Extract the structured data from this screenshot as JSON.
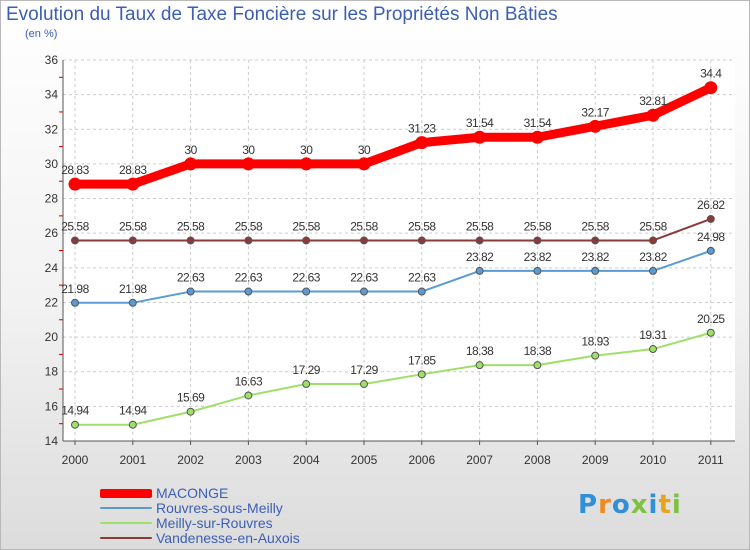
{
  "chart_data": {
    "type": "line",
    "title": "Evolution du Taux de Taxe Foncière sur les Propriétés Non Bâties",
    "unit_label": "(en %)",
    "categories": [
      "2000",
      "2001",
      "2002",
      "2003",
      "2004",
      "2005",
      "2006",
      "2007",
      "2008",
      "2009",
      "2010",
      "2011"
    ],
    "ylim": [
      14,
      36
    ],
    "yticks": [
      14,
      16,
      18,
      20,
      22,
      24,
      26,
      28,
      30,
      32,
      34,
      36
    ],
    "grid": true,
    "legend_position": "bottom-left",
    "series": [
      {
        "name": "MACONGE",
        "color": "#ff0000",
        "emphasis": true,
        "values": [
          28.83,
          28.83,
          30,
          30,
          30,
          30,
          31.23,
          31.54,
          31.54,
          32.17,
          32.81,
          34.4
        ],
        "labels": [
          "28.83",
          "28.83",
          "30",
          "30",
          "30",
          "30",
          "31.23",
          "31.54",
          "31.54",
          "32.17",
          "32.81",
          "34.4"
        ]
      },
      {
        "name": "Rouvres-sous-Meilly",
        "color": "#5b9bd5",
        "emphasis": false,
        "values": [
          21.98,
          21.98,
          22.63,
          22.63,
          22.63,
          22.63,
          22.63,
          23.82,
          23.82,
          23.82,
          23.82,
          24.98
        ],
        "labels": [
          "21.98",
          "21.98",
          "22.63",
          "22.63",
          "22.63",
          "22.63",
          "22.63",
          "23.82",
          "23.82",
          "23.82",
          "23.82",
          "24.98"
        ]
      },
      {
        "name": "Meilly-sur-Rouvres",
        "color": "#9ee06a",
        "emphasis": false,
        "values": [
          14.94,
          14.94,
          15.69,
          16.63,
          17.29,
          17.29,
          17.85,
          18.38,
          18.38,
          18.93,
          19.31,
          20.25
        ],
        "labels": [
          "14.94",
          "14.94",
          "15.69",
          "16.63",
          "17.29",
          "17.29",
          "17.85",
          "18.38",
          "18.38",
          "18.93",
          "19.31",
          "20.25"
        ]
      },
      {
        "name": "Vandenesse-en-Auxois",
        "color": "#8b3a3a",
        "emphasis": false,
        "values": [
          25.58,
          25.58,
          25.58,
          25.58,
          25.58,
          25.58,
          25.58,
          25.58,
          25.58,
          25.58,
          25.58,
          26.82
        ],
        "labels": [
          "25.58",
          "25.58",
          "25.58",
          "25.58",
          "25.58",
          "25.58",
          "25.58",
          "25.58",
          "25.58",
          "25.58",
          "25.58",
          "26.82"
        ]
      }
    ]
  },
  "logo": {
    "text": "Proxiti",
    "letter_colors": [
      "#2f8fd8",
      "#f08a1c",
      "#2f8fd8",
      "#7dc242",
      "#2f8fd8",
      "#e8a21c",
      "#7dc242"
    ]
  }
}
